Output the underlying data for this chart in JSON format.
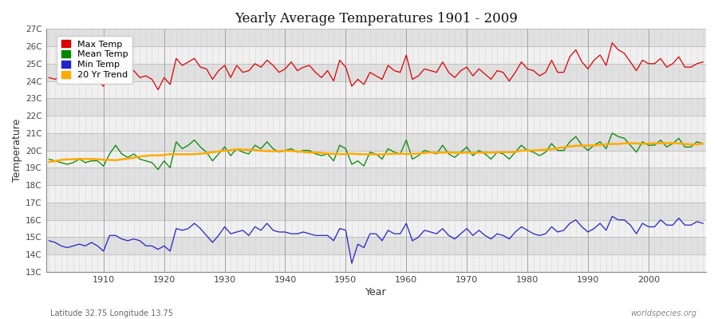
{
  "title": "Yearly Average Temperatures 1901 - 2009",
  "xlabel": "Year",
  "ylabel": "Temperature",
  "subtitle_left": "Latitude 32.75 Longitude 13.75",
  "subtitle_right": "worldspecies.org",
  "year_start": 1901,
  "year_end": 2009,
  "ylim": [
    13,
    27
  ],
  "yticks": [
    13,
    14,
    15,
    16,
    17,
    18,
    19,
    20,
    21,
    22,
    23,
    24,
    25,
    26,
    27
  ],
  "ytick_labels": [
    "13C",
    "14C",
    "15C",
    "16C",
    "17C",
    "18C",
    "19C",
    "20C",
    "21C",
    "22C",
    "23C",
    "24C",
    "25C",
    "26C",
    "27C"
  ],
  "xticks": [
    1910,
    1920,
    1930,
    1940,
    1950,
    1960,
    1970,
    1980,
    1990,
    2000
  ],
  "legend_labels": [
    "Max Temp",
    "Mean Temp",
    "Min Temp",
    "20 Yr Trend"
  ],
  "legend_colors": [
    "#dd0000",
    "#008800",
    "#2222cc",
    "#ffaa00"
  ],
  "max_temp": [
    24.2,
    24.1,
    24.3,
    24.0,
    24.1,
    24.3,
    24.2,
    24.1,
    24.0,
    23.7,
    24.6,
    25.5,
    24.8,
    24.4,
    24.6,
    24.2,
    24.3,
    24.1,
    23.5,
    24.2,
    23.8,
    25.3,
    24.9,
    25.1,
    25.3,
    24.8,
    24.7,
    24.1,
    24.6,
    24.9,
    24.2,
    24.9,
    24.5,
    24.6,
    25.0,
    24.8,
    25.2,
    24.9,
    24.5,
    24.7,
    25.1,
    24.6,
    24.8,
    24.9,
    24.5,
    24.2,
    24.6,
    24.0,
    25.2,
    24.8,
    23.7,
    24.1,
    23.8,
    24.5,
    24.3,
    24.1,
    24.9,
    24.6,
    24.5,
    25.5,
    24.1,
    24.3,
    24.7,
    24.6,
    24.5,
    25.1,
    24.5,
    24.2,
    24.6,
    24.8,
    24.3,
    24.7,
    24.4,
    24.1,
    24.6,
    24.5,
    24.0,
    24.5,
    25.1,
    24.7,
    24.6,
    24.3,
    24.5,
    25.2,
    24.5,
    24.5,
    25.4,
    25.8,
    25.1,
    24.7,
    25.2,
    25.5,
    24.9,
    26.2,
    25.8,
    25.6,
    25.1,
    24.6,
    25.2,
    25.0,
    25.0,
    25.3,
    24.8,
    25.0,
    25.4,
    24.8,
    24.8,
    25.0,
    25.1
  ],
  "mean_temp": [
    19.5,
    19.4,
    19.3,
    19.2,
    19.3,
    19.5,
    19.3,
    19.4,
    19.4,
    19.1,
    19.8,
    20.3,
    19.8,
    19.6,
    19.8,
    19.5,
    19.4,
    19.3,
    18.9,
    19.4,
    19.0,
    20.5,
    20.1,
    20.3,
    20.6,
    20.2,
    19.9,
    19.4,
    19.8,
    20.2,
    19.7,
    20.1,
    19.9,
    19.8,
    20.3,
    20.1,
    20.5,
    20.1,
    19.9,
    20.0,
    20.1,
    19.9,
    20.0,
    20.0,
    19.8,
    19.7,
    19.8,
    19.4,
    20.3,
    20.1,
    19.2,
    19.4,
    19.1,
    19.9,
    19.8,
    19.5,
    20.1,
    19.9,
    19.8,
    20.6,
    19.5,
    19.7,
    20.0,
    19.9,
    19.8,
    20.3,
    19.8,
    19.6,
    19.9,
    20.2,
    19.7,
    20.0,
    19.8,
    19.5,
    19.9,
    19.8,
    19.5,
    19.9,
    20.3,
    20.0,
    19.9,
    19.7,
    19.9,
    20.4,
    20.0,
    20.0,
    20.5,
    20.8,
    20.3,
    20.0,
    20.3,
    20.5,
    20.1,
    21.0,
    20.8,
    20.7,
    20.3,
    19.9,
    20.5,
    20.3,
    20.3,
    20.6,
    20.2,
    20.4,
    20.7,
    20.2,
    20.2,
    20.5,
    20.4
  ],
  "min_temp": [
    14.8,
    14.7,
    14.5,
    14.4,
    14.5,
    14.6,
    14.5,
    14.7,
    14.5,
    14.2,
    15.1,
    15.1,
    14.9,
    14.8,
    14.9,
    14.8,
    14.5,
    14.5,
    14.3,
    14.5,
    14.2,
    15.5,
    15.4,
    15.5,
    15.8,
    15.5,
    15.1,
    14.7,
    15.1,
    15.6,
    15.2,
    15.3,
    15.4,
    15.1,
    15.6,
    15.4,
    15.8,
    15.4,
    15.3,
    15.3,
    15.2,
    15.2,
    15.3,
    15.2,
    15.1,
    15.1,
    15.1,
    14.8,
    15.5,
    15.4,
    13.5,
    14.6,
    14.4,
    15.2,
    15.2,
    14.8,
    15.4,
    15.2,
    15.2,
    15.8,
    14.8,
    15.0,
    15.4,
    15.3,
    15.2,
    15.5,
    15.1,
    14.9,
    15.2,
    15.5,
    15.1,
    15.4,
    15.1,
    14.9,
    15.2,
    15.1,
    14.9,
    15.3,
    15.6,
    15.4,
    15.2,
    15.1,
    15.2,
    15.6,
    15.3,
    15.4,
    15.8,
    16.0,
    15.6,
    15.3,
    15.5,
    15.8,
    15.4,
    16.2,
    16.0,
    16.0,
    15.7,
    15.2,
    15.8,
    15.6,
    15.6,
    16.0,
    15.7,
    15.7,
    16.1,
    15.7,
    15.7,
    15.9,
    15.8
  ],
  "bg_color": "#ffffff",
  "plot_bg_color": "#f5f5f5",
  "band_color_light": "#f0f0f0",
  "band_color_dark": "#e0e0e0",
  "grid_color_minor": "#cccccc",
  "line_color_max": "#dd0000",
  "line_color_mean": "#008800",
  "line_color_min": "#2222cc",
  "line_color_trend": "#ffaa00"
}
